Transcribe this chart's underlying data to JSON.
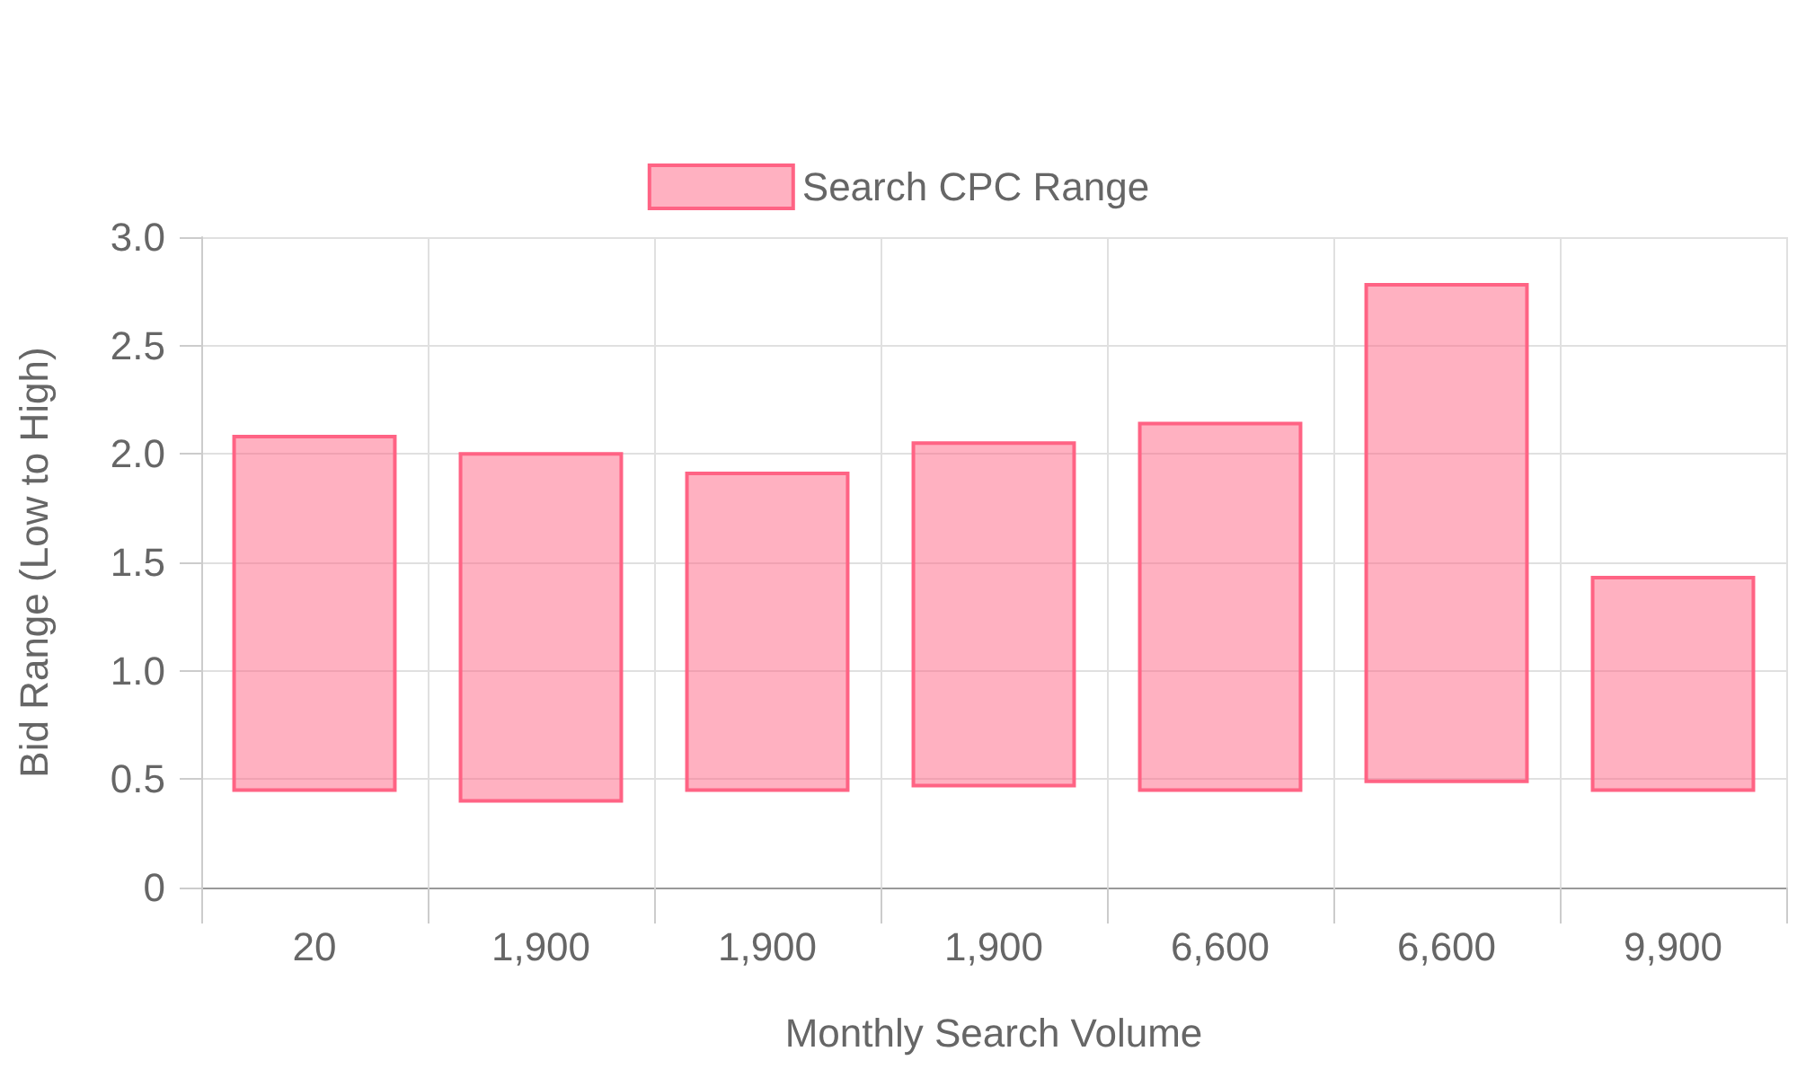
{
  "chart_data": {
    "type": "bar",
    "xlabel": "Monthly Search Volume",
    "ylabel": "Bid Range (Low to High)",
    "categories": [
      "20",
      "1,900",
      "1,900",
      "1,900",
      "6,600",
      "6,600",
      "9,900"
    ],
    "series": [
      {
        "name": "Search CPC Range",
        "color": "#ff6384",
        "values": [
          1.63,
          1.6,
          1.46,
          1.58,
          1.69,
          2.29,
          0.98
        ],
        "base": [
          0.45,
          0.4,
          0.45,
          0.47,
          0.45,
          0.49,
          0.45
        ]
      }
    ],
    "ylim": [
      0,
      3
    ],
    "yticks": [
      0,
      0.5,
      {
        "value": 1,
        "label": "1.0"
      },
      1.5,
      {
        "value": 2,
        "label": "2.0"
      },
      2.5,
      {
        "value": 3,
        "label": "3.0"
      }
    ],
    "grid": true,
    "legend": "top"
  }
}
